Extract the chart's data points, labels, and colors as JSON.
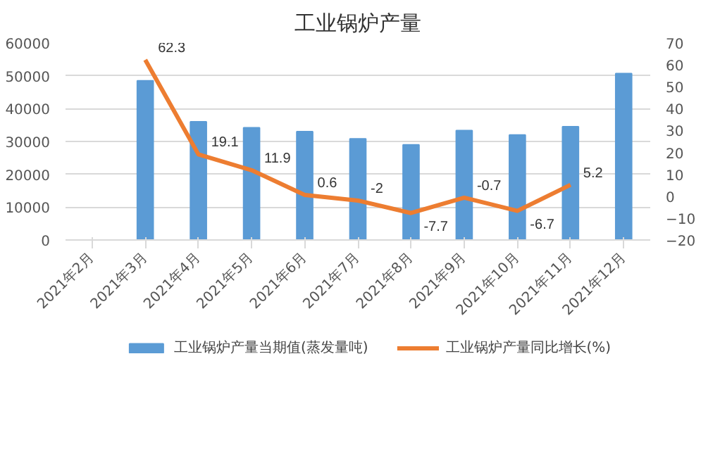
{
  "chart_data": {
    "type": "bar",
    "title": "工业锅炉产量",
    "categories": [
      "2021年2月",
      "2021年3月",
      "2021年4月",
      "2021年5月",
      "2021年6月",
      "2021年7月",
      "2021年8月",
      "2021年9月",
      "2021年10月",
      "2021年11月",
      "2021年12月"
    ],
    "series": [
      {
        "name": "工业锅炉产量当期值(蒸发量吨)",
        "color": "#5b9bd5",
        "values": [
          null,
          48500,
          36000,
          34200,
          33000,
          30800,
          29000,
          33300,
          32000,
          34500,
          50700
        ]
      },
      {
        "name": "工业锅炉产量同比增长(%)",
        "type": "line",
        "axis": "y2",
        "color": "#ed7d31",
        "data_labels": true,
        "values": [
          null,
          62.3,
          19.1,
          11.9,
          0.6,
          -2,
          -7.7,
          -0.7,
          -6.7,
          5.2,
          null
        ]
      }
    ],
    "ylim": [
      0,
      60000
    ],
    "yticks": [
      0,
      10000,
      20000,
      30000,
      40000,
      50000,
      60000
    ],
    "y2lim": [
      -20,
      70
    ],
    "y2ticks": [
      -20,
      -10,
      0,
      10,
      20,
      30,
      40,
      50,
      60,
      70
    ],
    "grid": "y",
    "legend": "bottom",
    "marker": "none",
    "line_style": "solid"
  }
}
